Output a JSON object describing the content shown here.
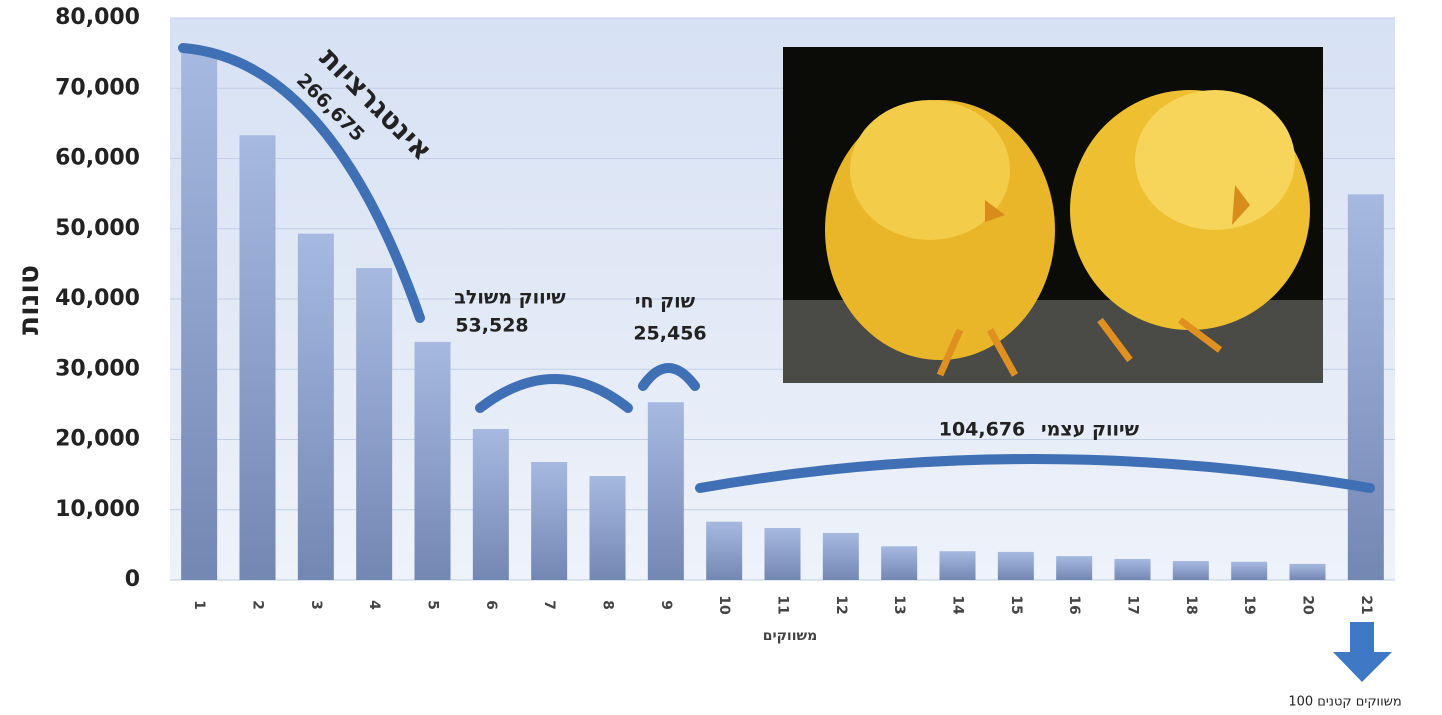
{
  "chart_data": {
    "type": "bar",
    "y_label": "טונות",
    "x_label": "משווקים",
    "categories": [
      "1",
      "2",
      "3",
      "4",
      "5",
      "6",
      "7",
      "8",
      "9",
      "10",
      "11",
      "12",
      "13",
      "14",
      "15",
      "16",
      "17",
      "18",
      "19",
      "20",
      "21"
    ],
    "values": [
      75200,
      63300,
      49300,
      44400,
      33900,
      21500,
      16800,
      14800,
      25300,
      8300,
      7400,
      6700,
      4800,
      4100,
      4000,
      3400,
      3000,
      2700,
      2600,
      2300,
      54900
    ],
    "color": "#a6b9e0",
    "ylim": [
      0,
      80000
    ],
    "yticks": [
      0,
      {
        "value": 10000,
        "label": "10,000"
      },
      {
        "value": 20000,
        "label": "20,000"
      },
      {
        "value": 30000,
        "label": "30,000"
      },
      {
        "value": 40000,
        "label": "40,000"
      },
      {
        "value": 50000,
        "label": "50,000"
      },
      {
        "value": 60000,
        "label": "60,000"
      },
      {
        "value": 70000,
        "label": "70,000"
      },
      {
        "value": 80000,
        "label": "80,000"
      }
    ],
    "grid": true,
    "annotations": {
      "integration": "אינטגרציות",
      "integration_total": "266,675",
      "combined": "שיווק משולב",
      "combined_total": "53,528",
      "live_market": "שוק חי",
      "live_market_total": "25,456",
      "self": "שיווק עצמי",
      "self_total": "104,676",
      "small": "100 משווקים קטנים"
    }
  }
}
